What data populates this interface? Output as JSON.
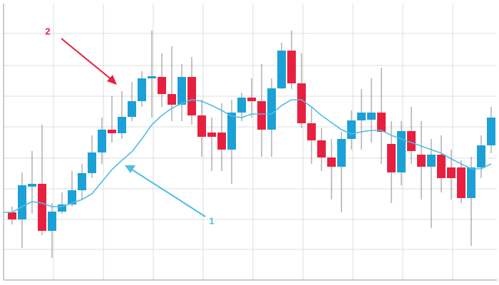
{
  "chart_data": {
    "type": "candlestick",
    "categories": [
      null,
      null,
      null,
      null,
      null,
      null,
      null,
      null,
      null,
      null,
      null,
      null,
      null,
      null,
      null,
      null,
      null,
      null,
      null,
      null,
      null,
      null,
      null,
      null,
      null,
      null,
      null,
      null,
      null,
      null,
      null,
      null,
      null,
      null,
      null,
      null,
      null,
      null,
      null,
      null,
      null,
      null,
      null,
      null,
      null,
      null,
      null,
      null,
      null
    ],
    "open": [
      102,
      92,
      138,
      142,
      76,
      103,
      113,
      133,
      157,
      186,
      218,
      213,
      236,
      258,
      290,
      292,
      268,
      253,
      292,
      238,
      214,
      214,
      190,
      242,
      263,
      258,
      218,
      276,
      329,
      283,
      227,
      203,
      179,
      166,
      205,
      231,
      232,
      242,
      198,
      158,
      216,
      183,
      166,
      183,
      165,
      165,
      122,
      165,
      196
    ],
    "high": [
      110,
      158,
      188,
      225,
      115,
      130,
      160,
      170,
      210,
      235,
      265,
      272,
      285,
      300,
      357,
      325,
      335,
      310,
      320,
      260,
      235,
      255,
      260,
      270,
      290,
      310,
      290,
      340,
      357,
      325,
      250,
      220,
      205,
      215,
      245,
      275,
      290,
      305,
      230,
      230,
      250,
      230,
      205,
      210,
      190,
      175,
      180,
      210,
      250
    ],
    "low": [
      85,
      52,
      100,
      70,
      38,
      100,
      110,
      120,
      150,
      170,
      200,
      205,
      230,
      250,
      235,
      250,
      230,
      230,
      225,
      180,
      160,
      160,
      142,
      230,
      235,
      180,
      180,
      275,
      275,
      220,
      170,
      160,
      120,
      102,
      190,
      190,
      200,
      170,
      115,
      140,
      170,
      120,
      80,
      130,
      120,
      115,
      55,
      150,
      185
    ],
    "close": [
      92,
      140,
      142,
      76,
      103,
      113,
      133,
      157,
      186,
      218,
      213,
      236,
      258,
      290,
      293,
      268,
      253,
      292,
      238,
      208,
      208,
      190,
      242,
      263,
      258,
      218,
      276,
      329,
      283,
      227,
      203,
      179,
      166,
      205,
      231,
      242,
      242,
      215,
      158,
      216,
      188,
      166,
      183,
      150,
      150,
      122,
      165,
      196,
      235
    ],
    "up_color": "#1ba1d6",
    "down_color": "#e8203f",
    "ma": {
      "color": "#4dbde6",
      "values": [
        102,
        110,
        117,
        115,
        110,
        110,
        115,
        120,
        128,
        145,
        162,
        175,
        187,
        205,
        225,
        238,
        248,
        255,
        260,
        258,
        252,
        245,
        237,
        235,
        240,
        240,
        240,
        252,
        260,
        260,
        250,
        238,
        228,
        218,
        212,
        215,
        217,
        217,
        210,
        205,
        200,
        195,
        190,
        185,
        177,
        170,
        163,
        163,
        170
      ]
    },
    "ylim": [
      0,
      400
    ],
    "annotations": [
      {
        "text": "2",
        "color": "#e8203f"
      },
      {
        "text": "1",
        "color": "#4dbde6"
      }
    ]
  }
}
